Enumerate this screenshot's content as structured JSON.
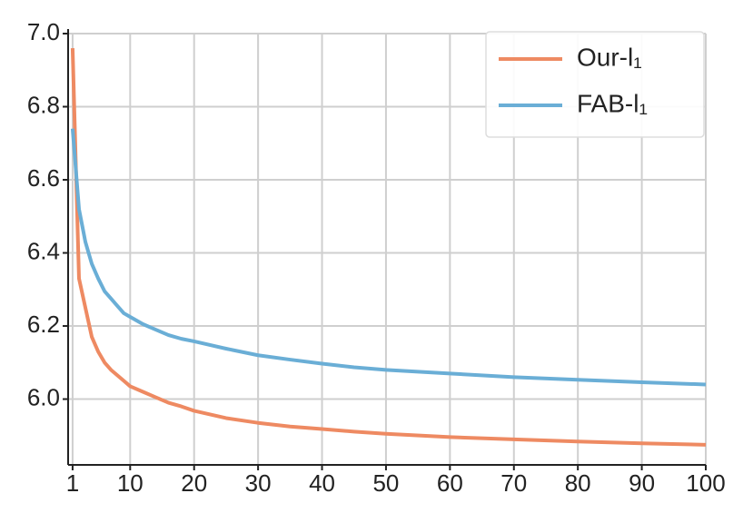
{
  "chart_data": {
    "type": "line",
    "x": [
      1,
      2,
      3,
      4,
      5,
      6,
      7,
      8,
      9,
      10,
      12,
      14,
      16,
      18,
      20,
      25,
      30,
      35,
      40,
      45,
      50,
      60,
      70,
      80,
      90,
      100
    ],
    "series": [
      {
        "name": "Our-l₁",
        "color": "#ee8a62",
        "values": [
          6.96,
          6.33,
          6.25,
          6.17,
          6.13,
          6.1,
          6.08,
          6.065,
          6.05,
          6.035,
          6.02,
          6.005,
          5.99,
          5.98,
          5.968,
          5.948,
          5.935,
          5.925,
          5.918,
          5.911,
          5.905,
          5.896,
          5.89,
          5.884,
          5.879,
          5.875
        ]
      },
      {
        "name": "FAB-l₁",
        "color": "#6aaed6",
        "values": [
          6.74,
          6.52,
          6.43,
          6.37,
          6.33,
          6.295,
          6.275,
          6.255,
          6.235,
          6.225,
          6.205,
          6.19,
          6.175,
          6.165,
          6.158,
          6.138,
          6.12,
          6.108,
          6.097,
          6.087,
          6.08,
          6.07,
          6.06,
          6.053,
          6.046,
          6.04
        ]
      }
    ],
    "xlim": [
      0.3,
      100
    ],
    "ylim": [
      5.82,
      7.0
    ],
    "xticks": [
      1,
      10,
      20,
      30,
      40,
      50,
      60,
      70,
      80,
      90,
      100
    ],
    "yticks": [
      {
        "value": 6,
        "label": "6.0"
      },
      6.2,
      6.4,
      6.6,
      6.8,
      {
        "value": 7,
        "label": "7.0"
      }
    ],
    "grid": true,
    "legend": "upper right"
  }
}
